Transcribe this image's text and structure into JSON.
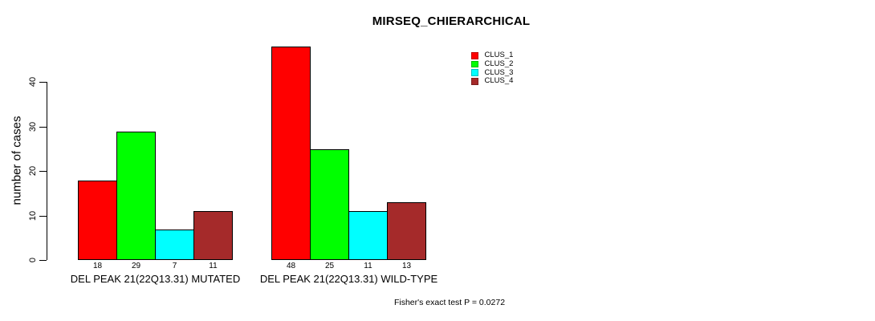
{
  "chart_data": {
    "type": "bar",
    "title": "MIRSEQ_CHIERARCHICAL",
    "ylabel": "number of cases",
    "xlabel": "",
    "annotation": "Fisher's exact test P = 0.0272",
    "ylim": [
      0,
      48
    ],
    "yticks": [
      0,
      10,
      20,
      30,
      40
    ],
    "grid": false,
    "legend_position": "top-right",
    "bar_borders": "#000000",
    "background": "#ffffff",
    "categories": [
      "DEL PEAK 21(22Q13.31) MUTATED",
      "DEL PEAK 21(22Q13.31) WILD-TYPE"
    ],
    "series": [
      {
        "name": "CLUS_1",
        "color": "#ff0000",
        "values": [
          18,
          48
        ]
      },
      {
        "name": "CLUS_2",
        "color": "#00ff00",
        "values": [
          29,
          25
        ]
      },
      {
        "name": "CLUS_3",
        "color": "#00ffff",
        "values": [
          7,
          11
        ]
      },
      {
        "name": "CLUS_4",
        "color": "#a52a2a",
        "values": [
          11,
          13
        ]
      }
    ]
  }
}
